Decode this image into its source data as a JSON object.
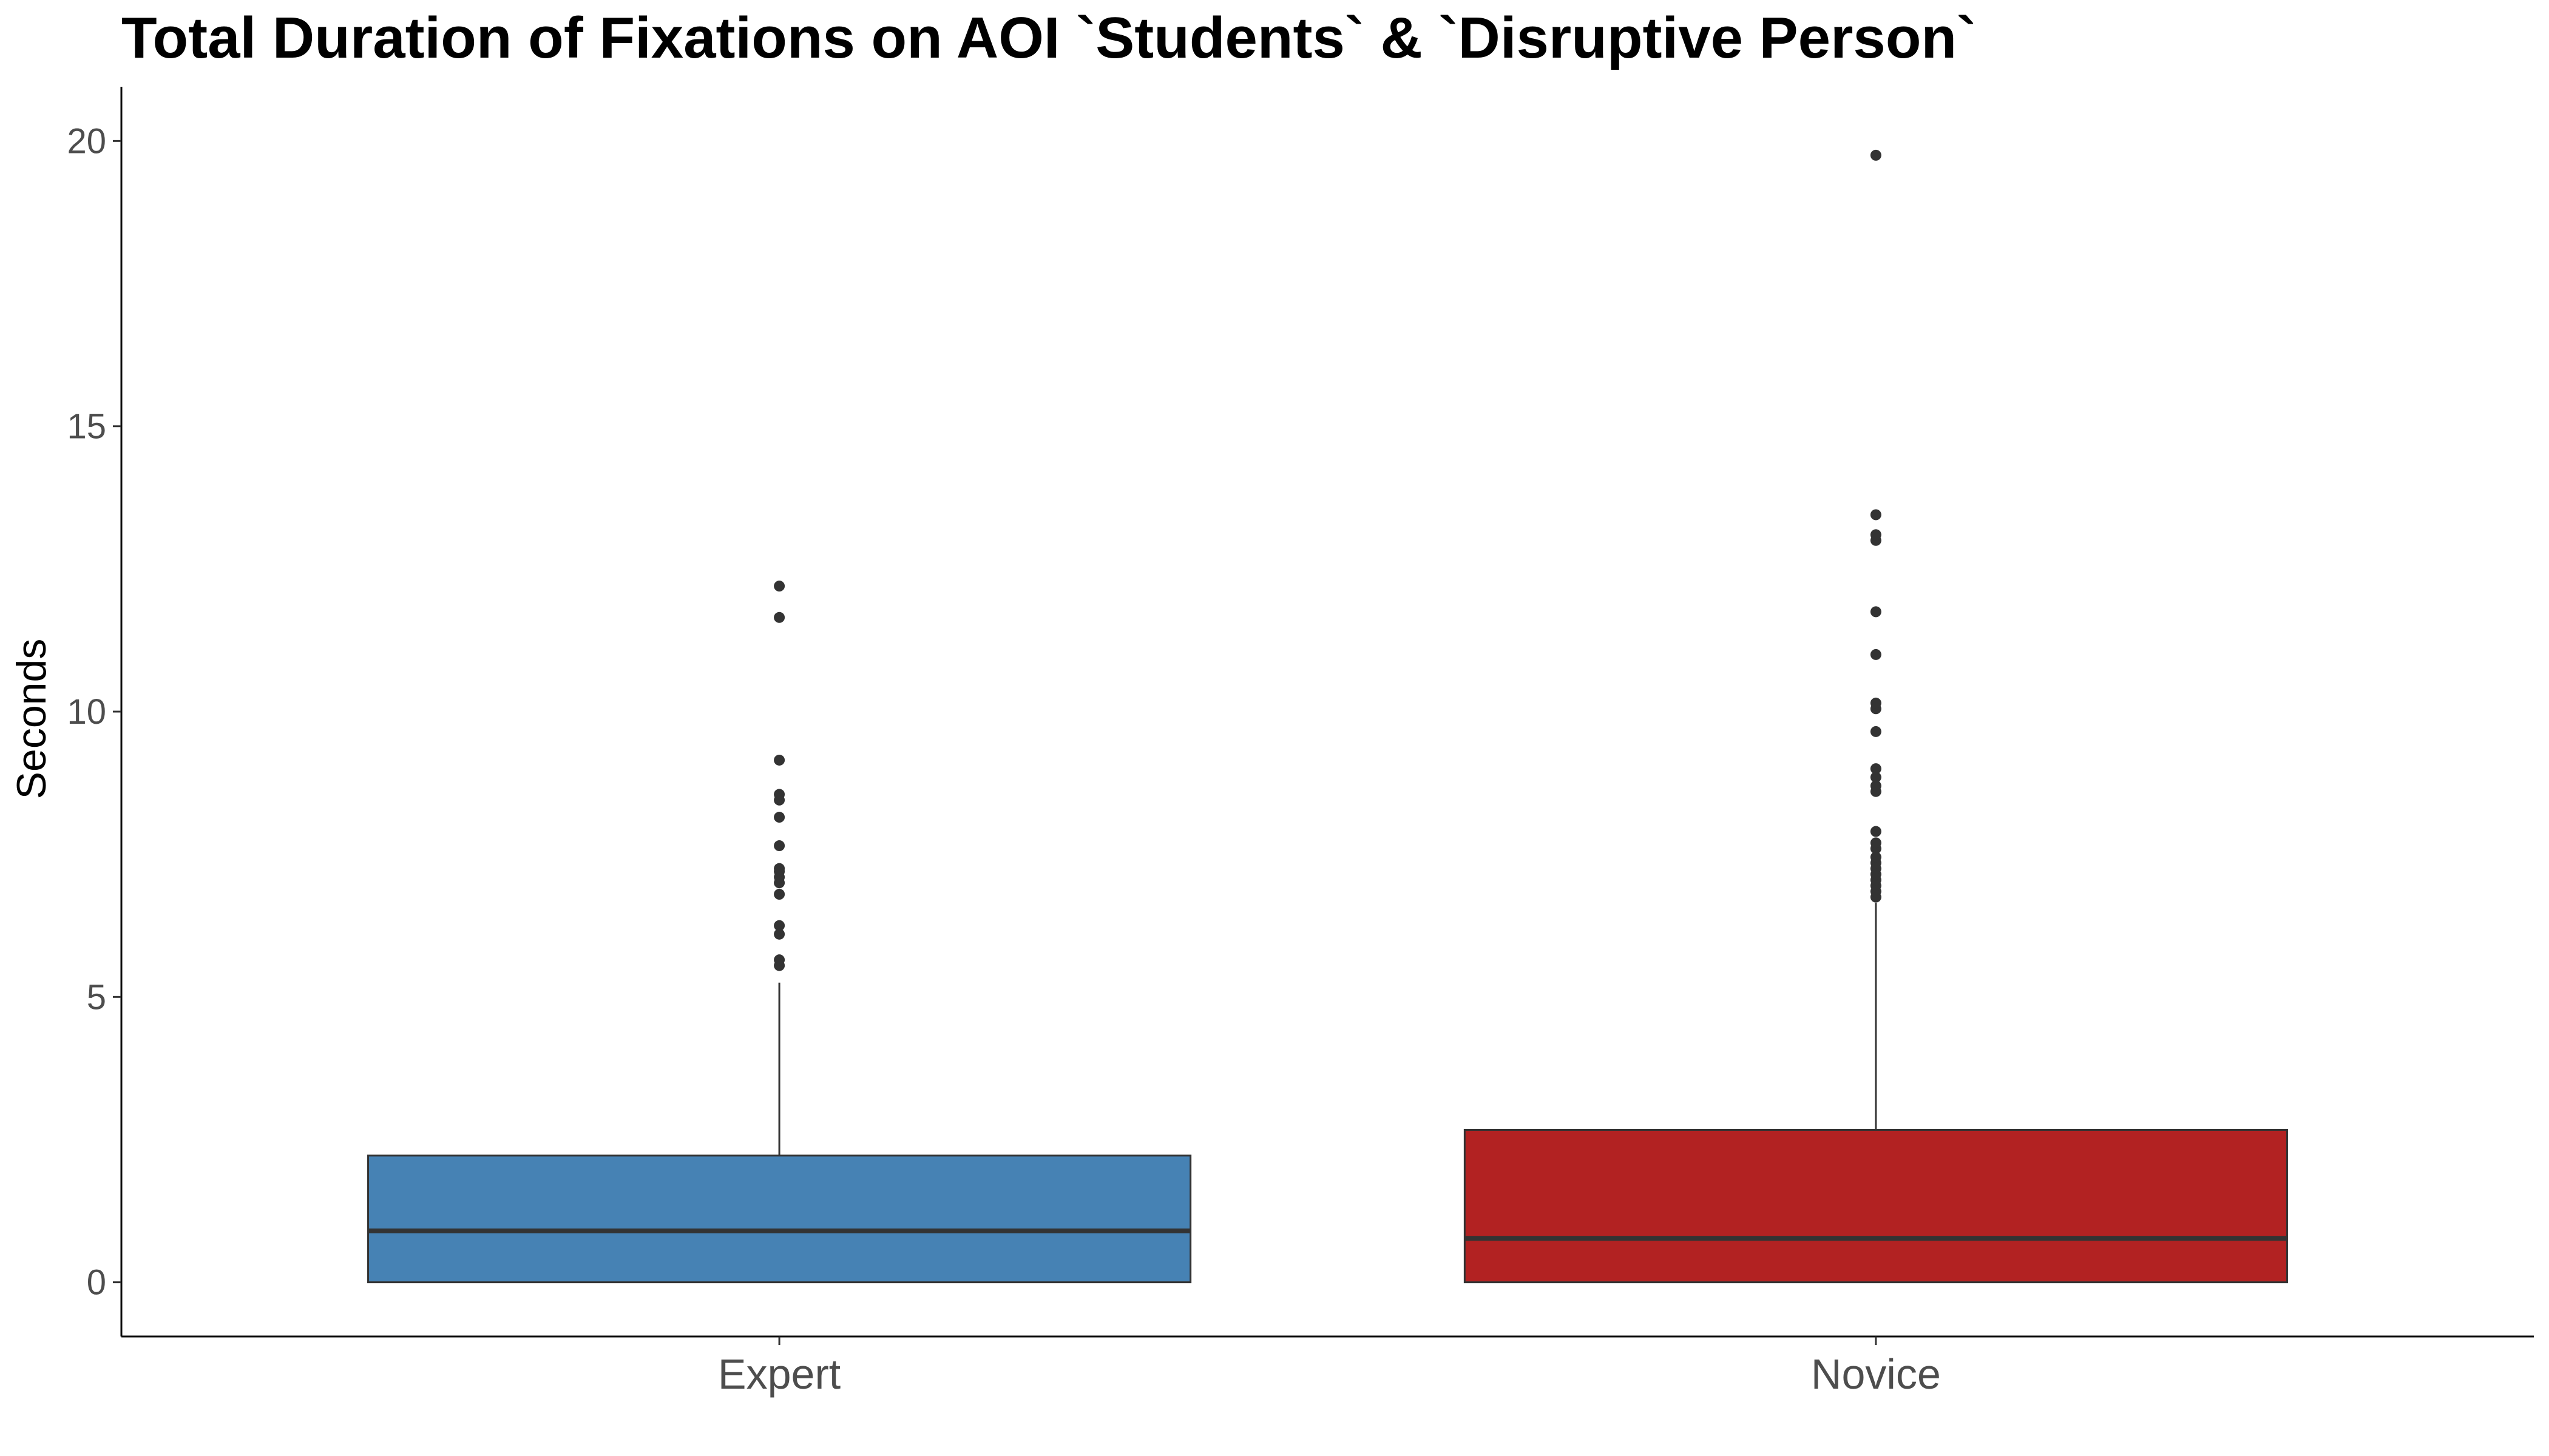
{
  "chart_data": {
    "type": "box",
    "title": "Total Duration of Fixations on AOI `Students` & `Disruptive Person`",
    "xlabel": "",
    "ylabel": "Seconds",
    "ylim": [
      -0.95,
      20.95
    ],
    "yticks": [
      0,
      5,
      10,
      15,
      20
    ],
    "grid": false,
    "legend": "none",
    "categories": [
      "Expert",
      "Novice"
    ],
    "boxes": [
      {
        "category": "Expert",
        "color": "#4682b4",
        "whisker_low": 0,
        "q1": 0,
        "median": 0.9,
        "q3": 2.22,
        "whisker_high": 5.25,
        "outliers": [
          5.55,
          5.65,
          6.1,
          6.25,
          6.8,
          7.0,
          7.1,
          7.2,
          7.25,
          7.65,
          8.15,
          8.45,
          8.55,
          9.15,
          11.65,
          12.2
        ]
      },
      {
        "category": "Novice",
        "color": "#b22222",
        "whisker_low": 0,
        "q1": 0,
        "median": 0.77,
        "q3": 2.67,
        "whisker_high": 6.65,
        "outliers": [
          6.75,
          6.85,
          6.95,
          7.05,
          7.15,
          7.25,
          7.35,
          7.45,
          7.6,
          7.7,
          7.9,
          8.6,
          8.7,
          8.85,
          9.0,
          9.65,
          10.05,
          10.15,
          11.0,
          11.75,
          13.0,
          13.1,
          13.45,
          19.75
        ]
      }
    ]
  }
}
